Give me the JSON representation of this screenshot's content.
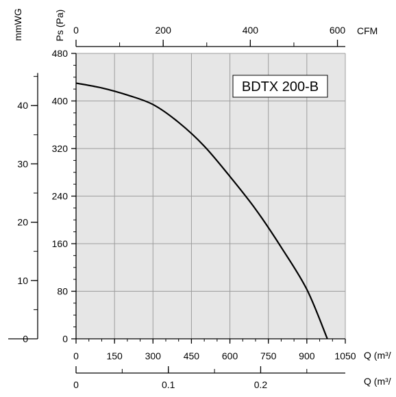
{
  "colors": {
    "plot_background": "#e6e6e6",
    "grid": "#9c9c9c",
    "curve": "#000000",
    "axis": "#000000",
    "label_box_fill": "#ffffff"
  },
  "chart_data": {
    "type": "line",
    "title": "",
    "model_label": "BDTX 200-B",
    "grid": true,
    "series": [
      {
        "name": "BDTX 200-B",
        "x": [
          0,
          100,
          200,
          300,
          400,
          500,
          600,
          700,
          800,
          900,
          980
        ],
        "y": [
          430,
          422,
          410,
          394,
          364,
          324,
          273,
          218,
          154,
          83,
          0
        ]
      }
    ],
    "x_axes": {
      "primary": {
        "unit_label": "Q (m³/",
        "range": [
          0,
          1050
        ],
        "major_ticks": [
          0,
          150,
          300,
          450,
          600,
          750,
          900,
          1050
        ],
        "tick_labels": [
          "0",
          "150",
          "300",
          "450",
          "600",
          "750",
          "900",
          "1050"
        ],
        "minor_step": 50
      },
      "top": {
        "unit_label": "CFM",
        "range": [
          0,
          618
        ],
        "major_ticks": [
          0,
          200,
          400,
          600
        ],
        "tick_labels": [
          "0",
          "200",
          "400",
          "600"
        ],
        "minor_step": 100
      },
      "bottom": {
        "unit_label": "Q (m³/",
        "range": [
          0,
          0.2917
        ],
        "major_ticks": [
          0,
          0.1,
          0.2
        ],
        "tick_labels": [
          "0",
          "0.1",
          "0.2"
        ],
        "minor_step": 0.05
      }
    },
    "y_axes": {
      "primary": {
        "unit_label": "Ps (Pa)",
        "range": [
          0,
          480
        ],
        "major_ticks": [
          0,
          80,
          160,
          240,
          320,
          400,
          480
        ],
        "tick_labels": [
          "0",
          "80",
          "160",
          "240",
          "320",
          "400",
          "480"
        ],
        "minor_step": 20
      },
      "secondary": {
        "unit_label": "mmWG",
        "range": [
          0,
          48.95
        ],
        "major_ticks": [
          0,
          10,
          20,
          30,
          40
        ],
        "tick_labels": [
          "0",
          "10",
          "20",
          "30",
          "40"
        ],
        "minor_step": 5
      }
    }
  }
}
